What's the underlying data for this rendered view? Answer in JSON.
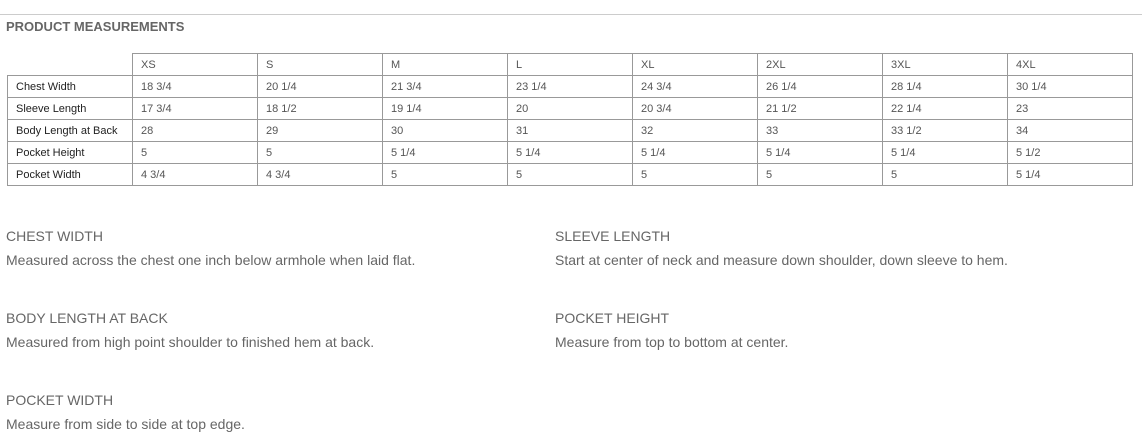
{
  "header": {
    "title": "PRODUCT MEASUREMENTS"
  },
  "table": {
    "columns": [
      "XS",
      "S",
      "M",
      "L",
      "XL",
      "2XL",
      "3XL",
      "4XL"
    ],
    "rows": [
      {
        "label": "Chest Width",
        "values": [
          "18 3/4",
          "20 1/4",
          "21 3/4",
          "23 1/4",
          "24 3/4",
          "26 1/4",
          "28 1/4",
          "30 1/4"
        ]
      },
      {
        "label": "Sleeve Length",
        "values": [
          "17 3/4",
          "18 1/2",
          "19 1/4",
          "20",
          "20 3/4",
          "21 1/2",
          "22 1/4",
          "23"
        ]
      },
      {
        "label": "Body Length at Back",
        "values": [
          "28",
          "29",
          "30",
          "31",
          "32",
          "33",
          "33 1/2",
          "34"
        ]
      },
      {
        "label": "Pocket Height",
        "values": [
          "5",
          "5",
          "5 1/4",
          "5 1/4",
          "5 1/4",
          "5 1/4",
          "5 1/4",
          "5 1/2"
        ]
      },
      {
        "label": "Pocket Width",
        "values": [
          "4 3/4",
          "4 3/4",
          "5",
          "5",
          "5",
          "5",
          "5",
          "5 1/4"
        ]
      }
    ]
  },
  "definitions": [
    {
      "title": "CHEST WIDTH",
      "text": "Measured across the chest one inch below armhole when laid flat."
    },
    {
      "title": "SLEEVE LENGTH",
      "text": "Start at center of neck and measure down shoulder, down sleeve to hem."
    },
    {
      "title": "BODY LENGTH AT BACK",
      "text": "Measured from high point shoulder to finished hem at back."
    },
    {
      "title": "POCKET HEIGHT",
      "text": "Measure from top to bottom at center."
    },
    {
      "title": "POCKET WIDTH",
      "text": "Measure from side to side at top edge."
    }
  ]
}
